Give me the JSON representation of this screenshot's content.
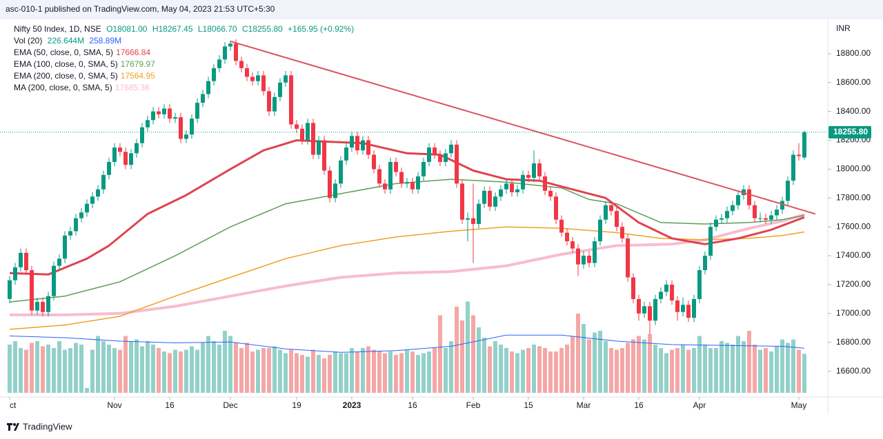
{
  "header": {
    "published": "asc-010-1 published on TradingView.com, May 04, 2023 21:53 UTC+5:30",
    "brand": "TradingView"
  },
  "chart_data": {
    "type": "candlestick",
    "symbol": "Nifty 50 Index, 1D, NSE",
    "ohlc_labels": [
      "O18081.00",
      "H18267.45",
      "L18066.70",
      "C18255.80"
    ],
    "change_label": "+165.95 (+0.92%)",
    "currency": "INR",
    "up_color": "#089981",
    "down_color": "#f23645",
    "ylim": [
      16450,
      19005
    ],
    "yticks": [
      {
        "value": 16600,
        "label": "16600.00"
      },
      {
        "value": 16800,
        "label": "16800.00"
      },
      {
        "value": 17000,
        "label": "17000.00"
      },
      {
        "value": 17200,
        "label": "17200.00"
      },
      {
        "value": 17400,
        "label": "17400.00"
      },
      {
        "value": 17600,
        "label": "17600.00"
      },
      {
        "value": 17800,
        "label": "17800.00"
      },
      {
        "value": 18000,
        "label": "18000.00"
      },
      {
        "value": 18200,
        "label": "18200.00"
      },
      {
        "value": 18400,
        "label": "18400.00"
      },
      {
        "value": 18600,
        "label": "18600.00"
      },
      {
        "value": 18800,
        "label": "18800.00"
      }
    ],
    "xticks": [
      {
        "value": 0,
        "label": "ct"
      },
      {
        "value": 19,
        "label": "Nov"
      },
      {
        "value": 29,
        "label": "16"
      },
      {
        "value": 40,
        "label": "Dec"
      },
      {
        "value": 52,
        "label": "19"
      },
      {
        "value": 62,
        "label": "2023"
      },
      {
        "value": 73,
        "label": "16"
      },
      {
        "value": 84,
        "label": "Feb"
      },
      {
        "value": 94,
        "label": "15"
      },
      {
        "value": 104,
        "label": "Mar"
      },
      {
        "value": 114,
        "label": "16"
      },
      {
        "value": 125,
        "label": "Apr"
      },
      {
        "value": 143,
        "label": "May"
      }
    ],
    "candles": [
      [
        17100,
        17260,
        17070,
        17230
      ],
      [
        17230,
        17350,
        17200,
        17320
      ],
      [
        17320,
        17450,
        17290,
        17420
      ],
      [
        17420,
        17450,
        17270,
        17300
      ],
      [
        17300,
        17330,
        16990,
        17020
      ],
      [
        17020,
        17110,
        16990,
        17080
      ],
      [
        17080,
        17110,
        16980,
        17010
      ],
      [
        17010,
        17150,
        16980,
        17120
      ],
      [
        17120,
        17360,
        17090,
        17330
      ],
      [
        17330,
        17410,
        17300,
        17380
      ],
      [
        17380,
        17570,
        17350,
        17540
      ],
      [
        17540,
        17600,
        17510,
        17570
      ],
      [
        17570,
        17690,
        17540,
        17660
      ],
      [
        17660,
        17730,
        17630,
        17700
      ],
      [
        17700,
        17790,
        17670,
        17760
      ],
      [
        17760,
        17840,
        17730,
        17810
      ],
      [
        17810,
        17890,
        17780,
        17860
      ],
      [
        17860,
        17990,
        17830,
        17960
      ],
      [
        17960,
        18080,
        17930,
        18050
      ],
      [
        18050,
        18180,
        18020,
        18150
      ],
      [
        18150,
        18180,
        18090,
        18120
      ],
      [
        18120,
        18150,
        18000,
        18030
      ],
      [
        18030,
        18140,
        18000,
        18110
      ],
      [
        18110,
        18210,
        18080,
        18180
      ],
      [
        18180,
        18320,
        18150,
        18290
      ],
      [
        18290,
        18370,
        18260,
        18340
      ],
      [
        18340,
        18430,
        18310,
        18400
      ],
      [
        18400,
        18430,
        18350,
        18380
      ],
      [
        18380,
        18450,
        18350,
        18420
      ],
      [
        18420,
        18450,
        18320,
        18350
      ],
      [
        18350,
        18390,
        18320,
        18360
      ],
      [
        18360,
        18390,
        18180,
        18210
      ],
      [
        18210,
        18270,
        18180,
        18240
      ],
      [
        18240,
        18380,
        18210,
        18350
      ],
      [
        18350,
        18490,
        18320,
        18460
      ],
      [
        18460,
        18550,
        18430,
        18520
      ],
      [
        18520,
        18640,
        18490,
        18610
      ],
      [
        18610,
        18730,
        18580,
        18700
      ],
      [
        18700,
        18790,
        18670,
        18760
      ],
      [
        18760,
        18880,
        18730,
        18850
      ],
      [
        18850,
        18890,
        18820,
        18870
      ],
      [
        18870,
        18900,
        18720,
        18750
      ],
      [
        18750,
        18780,
        18670,
        18700
      ],
      [
        18700,
        18730,
        18610,
        18640
      ],
      [
        18640,
        18670,
        18580,
        18610
      ],
      [
        18610,
        18680,
        18580,
        18650
      ],
      [
        18650,
        18680,
        18510,
        18540
      ],
      [
        18540,
        18570,
        18370,
        18400
      ],
      [
        18400,
        18530,
        18370,
        18500
      ],
      [
        18500,
        18630,
        18470,
        18600
      ],
      [
        18600,
        18680,
        18570,
        18650
      ],
      [
        18650,
        18680,
        18280,
        18310
      ],
      [
        18310,
        18340,
        18250,
        18280
      ],
      [
        18280,
        18310,
        18170,
        18200
      ],
      [
        18200,
        18350,
        18170,
        18320
      ],
      [
        18320,
        18350,
        18070,
        18100
      ],
      [
        18100,
        18230,
        18070,
        18200
      ],
      [
        18200,
        18230,
        17960,
        17990
      ],
      [
        17990,
        18020,
        17770,
        17800
      ],
      [
        17800,
        17930,
        17770,
        17900
      ],
      [
        17900,
        18090,
        17870,
        18060
      ],
      [
        18060,
        18180,
        18030,
        18150
      ],
      [
        18150,
        18260,
        18120,
        18230
      ],
      [
        18230,
        18260,
        18100,
        18130
      ],
      [
        18130,
        18230,
        18100,
        18200
      ],
      [
        18200,
        18230,
        18070,
        18100
      ],
      [
        18100,
        18130,
        17970,
        18000
      ],
      [
        18000,
        18030,
        17870,
        17900
      ],
      [
        17900,
        17930,
        17830,
        17860
      ],
      [
        17860,
        18080,
        17830,
        18050
      ],
      [
        18050,
        18080,
        17950,
        17980
      ],
      [
        17980,
        18010,
        17870,
        17900
      ],
      [
        17900,
        17940,
        17870,
        17910
      ],
      [
        17910,
        17940,
        17830,
        17860
      ],
      [
        17860,
        17980,
        17830,
        17950
      ],
      [
        17950,
        18080,
        17920,
        18050
      ],
      [
        18050,
        18180,
        18020,
        18150
      ],
      [
        18150,
        18180,
        18070,
        18100
      ],
      [
        18100,
        18130,
        18020,
        18050
      ],
      [
        18050,
        18140,
        18020,
        18110
      ],
      [
        18110,
        18200,
        18080,
        18170
      ],
      [
        18170,
        18200,
        17870,
        17900
      ],
      [
        17900,
        17930,
        17620,
        17650
      ],
      [
        17650,
        17700,
        17500,
        17660
      ],
      [
        17660,
        17900,
        17350,
        17620
      ],
      [
        17620,
        17790,
        17590,
        17760
      ],
      [
        17760,
        17880,
        17730,
        17850
      ],
      [
        17850,
        17880,
        17710,
        17740
      ],
      [
        17740,
        17840,
        17710,
        17810
      ],
      [
        17810,
        17890,
        17780,
        17860
      ],
      [
        17860,
        17930,
        17830,
        17900
      ],
      [
        17900,
        17930,
        17810,
        17840
      ],
      [
        17840,
        17890,
        17810,
        17860
      ],
      [
        17860,
        17990,
        17830,
        17960
      ],
      [
        17960,
        17990,
        17910,
        17940
      ],
      [
        17940,
        18130,
        17910,
        18040
      ],
      [
        18040,
        18070,
        17920,
        17950
      ],
      [
        17950,
        17980,
        17820,
        17850
      ],
      [
        17850,
        17880,
        17780,
        17810
      ],
      [
        17810,
        17840,
        17620,
        17650
      ],
      [
        17650,
        17680,
        17530,
        17560
      ],
      [
        17560,
        17590,
        17470,
        17500
      ],
      [
        17500,
        17530,
        17420,
        17450
      ],
      [
        17450,
        17480,
        17260,
        17340
      ],
      [
        17340,
        17430,
        17310,
        17400
      ],
      [
        17400,
        17430,
        17320,
        17350
      ],
      [
        17350,
        17530,
        17320,
        17500
      ],
      [
        17500,
        17680,
        17470,
        17650
      ],
      [
        17650,
        17780,
        17620,
        17750
      ],
      [
        17750,
        17780,
        17680,
        17710
      ],
      [
        17710,
        17740,
        17570,
        17600
      ],
      [
        17600,
        17630,
        17490,
        17520
      ],
      [
        17520,
        17550,
        17220,
        17250
      ],
      [
        17250,
        17280,
        17070,
        17100
      ],
      [
        17100,
        17130,
        16950,
        17000
      ],
      [
        17000,
        17080,
        16970,
        17050
      ],
      [
        17050,
        17080,
        16850,
        16950
      ],
      [
        16950,
        17130,
        16920,
        17100
      ],
      [
        17100,
        17180,
        17070,
        17150
      ],
      [
        17150,
        17230,
        17120,
        17200
      ],
      [
        17200,
        17230,
        17060,
        17090
      ],
      [
        17090,
        17120,
        16950,
        17010
      ],
      [
        17010,
        17110,
        16980,
        17060
      ],
      [
        17060,
        17090,
        16940,
        16970
      ],
      [
        16970,
        17130,
        16940,
        17100
      ],
      [
        17100,
        17330,
        17070,
        17300
      ],
      [
        17300,
        17430,
        17270,
        17400
      ],
      [
        17400,
        17630,
        17370,
        17600
      ],
      [
        17600,
        17680,
        17570,
        17650
      ],
      [
        17650,
        17690,
        17620,
        17660
      ],
      [
        17660,
        17740,
        17630,
        17710
      ],
      [
        17710,
        17780,
        17680,
        17750
      ],
      [
        17750,
        17850,
        17720,
        17820
      ],
      [
        17820,
        17890,
        17790,
        17860
      ],
      [
        17860,
        17890,
        17720,
        17750
      ],
      [
        17750,
        17780,
        17630,
        17660
      ],
      [
        17660,
        17700,
        17630,
        17660
      ],
      [
        17660,
        17690,
        17620,
        17650
      ],
      [
        17650,
        17710,
        17620,
        17680
      ],
      [
        17680,
        17750,
        17650,
        17720
      ],
      [
        17720,
        17810,
        17690,
        17780
      ],
      [
        17780,
        17950,
        17750,
        17920
      ],
      [
        17920,
        18130,
        17890,
        18100
      ],
      [
        18100,
        18180,
        18060,
        18090
      ],
      [
        18081,
        18267.45,
        18066.7,
        18255.8
      ]
    ],
    "last_price_label": "18255.80",
    "volume": {
      "name": "Vol (20)",
      "value_label": "226.644M",
      "vlim": [
        0,
        560
      ],
      "up_color": "#92d1c9",
      "down_color": "#f5a6a6",
      "values": [
        280,
        300,
        260,
        250,
        290,
        300,
        270,
        280,
        260,
        300,
        250,
        260,
        290,
        280,
        28,
        250,
        330,
        300,
        280,
        260,
        250,
        330,
        300,
        310,
        270,
        300,
        280,
        260,
        240,
        230,
        250,
        240,
        250,
        270,
        250,
        290,
        330,
        300,
        280,
        360,
        330,
        290,
        260,
        290,
        240,
        250,
        260,
        260,
        270,
        250,
        230,
        250,
        230,
        220,
        210,
        250,
        220,
        200,
        220,
        240,
        230,
        230,
        260,
        240,
        260,
        270,
        250,
        240,
        230,
        240,
        220,
        230,
        250,
        240,
        220,
        230,
        240,
        260,
        450,
        260,
        300,
        500,
        420,
        530,
        450,
        380,
        320,
        270,
        300,
        280,
        260,
        240,
        230,
        250,
        260,
        280,
        270,
        260,
        240,
        240,
        260,
        280,
        330,
        460,
        400,
        310,
        350,
        360,
        300,
        260,
        250,
        260,
        290,
        310,
        330,
        310,
        340,
        280,
        260,
        230,
        250,
        260,
        280,
        250,
        260,
        330,
        280,
        260,
        260,
        300,
        290,
        280,
        330,
        300,
        360,
        280,
        250,
        260,
        240,
        270,
        310,
        290,
        310,
        250,
        226.644
      ],
      "ma": {
        "color": "#2962ff",
        "value_label": "258.89M",
        "x": [
          0,
          10,
          20,
          30,
          40,
          50,
          60,
          70,
          80,
          90,
          100,
          110,
          120,
          130,
          140,
          144
        ],
        "values": [
          330,
          320,
          300,
          290,
          295,
          255,
          235,
          245,
          270,
          335,
          335,
          300,
          280,
          275,
          270,
          258.89
        ]
      }
    },
    "indicators": [
      {
        "name": "EMA (50, close, 0, SMA, 5)",
        "value_label": "17666.84",
        "color": "#e0424f",
        "width": 3,
        "x": [
          0,
          7,
          14,
          18,
          25,
          32,
          40,
          46,
          52,
          58,
          64,
          72,
          78,
          84,
          90,
          96,
          102,
          108,
          114,
          120,
          126,
          132,
          138,
          144
        ],
        "values": [
          17280,
          17270,
          17380,
          17470,
          17690,
          17820,
          18000,
          18130,
          18200,
          18190,
          18180,
          18110,
          18100,
          17990,
          17930,
          17920,
          17860,
          17800,
          17630,
          17520,
          17480,
          17520,
          17580,
          17666.84
        ]
      },
      {
        "name": "EMA (100, close, 0, SMA, 5)",
        "value_label": "17679.97",
        "color": "#5a9e55",
        "width": 1.5,
        "x": [
          0,
          10,
          20,
          30,
          40,
          50,
          60,
          70,
          80,
          90,
          100,
          105,
          110,
          118,
          126,
          134,
          140,
          144
        ],
        "values": [
          17080,
          17120,
          17220,
          17400,
          17600,
          17760,
          17830,
          17900,
          17930,
          17910,
          17870,
          17790,
          17760,
          17630,
          17620,
          17630,
          17650,
          17679.97
        ]
      },
      {
        "name": "EMA (200, close, 0, SMA, 5)",
        "value_label": "17564.95",
        "color": "#f0a020",
        "width": 1.5,
        "x": [
          0,
          10,
          20,
          30,
          40,
          50,
          60,
          70,
          80,
          90,
          100,
          110,
          118,
          126,
          134,
          140,
          144
        ],
        "values": [
          16890,
          16920,
          16980,
          17120,
          17250,
          17380,
          17470,
          17530,
          17570,
          17600,
          17590,
          17560,
          17520,
          17510,
          17520,
          17540,
          17564.95
        ]
      },
      {
        "name": "MA (200, close, 0, SMA, 5)",
        "value_label": "17685.36",
        "color": "#f8bbd0",
        "width": 4,
        "x": [
          0,
          10,
          20,
          30,
          40,
          50,
          60,
          70,
          80,
          90,
          100,
          110,
          120,
          126,
          134,
          140,
          144
        ],
        "values": [
          16990,
          16990,
          17000,
          17050,
          17120,
          17190,
          17250,
          17280,
          17290,
          17330,
          17410,
          17470,
          17480,
          17510,
          17590,
          17640,
          17685.36
        ]
      }
    ],
    "trendline": {
      "color": "#d9535f",
      "x": [
        40,
        146
      ],
      "values": [
        18886,
        17690
      ]
    }
  }
}
